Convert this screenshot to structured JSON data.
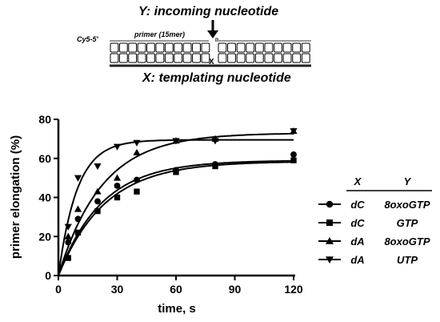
{
  "schematic": {
    "title_y": "Y: incoming nucleotide",
    "title_x": "X: templating nucleotide",
    "primer_label": "primer (15mer)",
    "strand_label": "Cy5-5'",
    "phosphate_label": "P",
    "template_mark": "X"
  },
  "legend": {
    "col_x": "X",
    "col_y": "Y",
    "rows": [
      {
        "x": "dC",
        "y": "8oxoGTP",
        "marker": "circle"
      },
      {
        "x": "dC",
        "y": "GTP",
        "marker": "square"
      },
      {
        "x": "dA",
        "y": "8oxoGTP",
        "marker": "triangle-up"
      },
      {
        "x": "dA",
        "y": "UTP",
        "marker": "triangle-down"
      }
    ]
  },
  "chart_data": {
    "type": "scatter",
    "xlabel": "time, s",
    "ylabel": "primer elongation (%)",
    "xlim": [
      0,
      120
    ],
    "ylim": [
      0,
      80
    ],
    "xticks": [
      0,
      30,
      60,
      90,
      120
    ],
    "yticks": [
      0,
      20,
      40,
      60,
      80
    ],
    "grid": false,
    "legend_position": "right",
    "series": [
      {
        "marker": "circle",
        "x": [
          5,
          10,
          20,
          30,
          40,
          60,
          80,
          120
        ],
        "y": [
          17,
          29,
          38,
          46,
          49,
          54,
          57,
          62
        ],
        "fit_plateau": 59,
        "fit_rate": 0.045
      },
      {
        "marker": "square",
        "x": [
          5,
          10,
          20,
          30,
          40,
          60,
          80,
          120
        ],
        "y": [
          9,
          22,
          33,
          40,
          43,
          53,
          56,
          59
        ],
        "fit_plateau": 58.5,
        "fit_rate": 0.042
      },
      {
        "marker": "triangle-up",
        "x": [
          5,
          10,
          20,
          30,
          40,
          60,
          80,
          120
        ],
        "y": [
          20,
          34,
          43,
          50,
          63,
          69,
          70,
          74
        ],
        "fit_plateau": 73,
        "fit_rate": 0.045
      },
      {
        "marker": "triangle-down",
        "x": [
          5,
          10,
          20,
          30,
          40,
          60,
          80,
          120
        ],
        "y": [
          25,
          50,
          56,
          66,
          68,
          69,
          69,
          74
        ],
        "fit_plateau": 69.5,
        "fit_rate": 0.105
      }
    ]
  }
}
